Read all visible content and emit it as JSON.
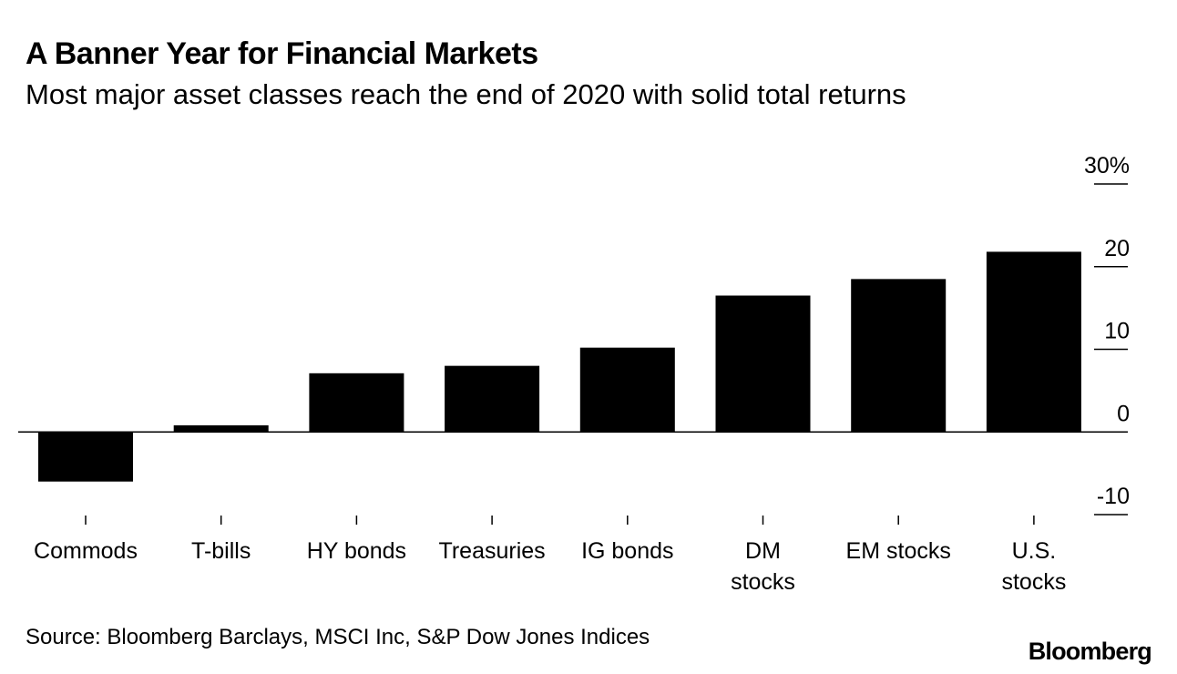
{
  "header": {
    "title": "A Banner Year for Financial Markets",
    "subtitle": "Most major asset classes reach the end of 2020 with solid total returns"
  },
  "footer": {
    "source": "Source: Bloomberg Barclays, MSCI Inc, S&P Dow Jones Indices",
    "logo": "Bloomberg"
  },
  "chart_data": {
    "type": "bar",
    "title": "A Banner Year for Financial Markets",
    "subtitle": "Most major asset classes reach the end of 2020 with solid total returns",
    "categories": [
      [
        "Commods"
      ],
      [
        "T-bills"
      ],
      [
        "HY bonds"
      ],
      [
        "Treasuries"
      ],
      [
        "IG bonds"
      ],
      [
        "DM",
        "stocks"
      ],
      [
        "EM stocks"
      ],
      [
        "U.S.",
        "stocks"
      ]
    ],
    "values": [
      -6.0,
      0.8,
      7.1,
      8.0,
      10.2,
      16.5,
      18.5,
      21.8
    ],
    "ylim": [
      -10,
      30
    ],
    "yticks": [
      30,
      20,
      10,
      0,
      -10
    ],
    "ytick_labels": [
      "30%",
      "20",
      "10",
      "0",
      "-10"
    ],
    "xlabel": "",
    "ylabel": "",
    "bar_color": "#000000"
  }
}
